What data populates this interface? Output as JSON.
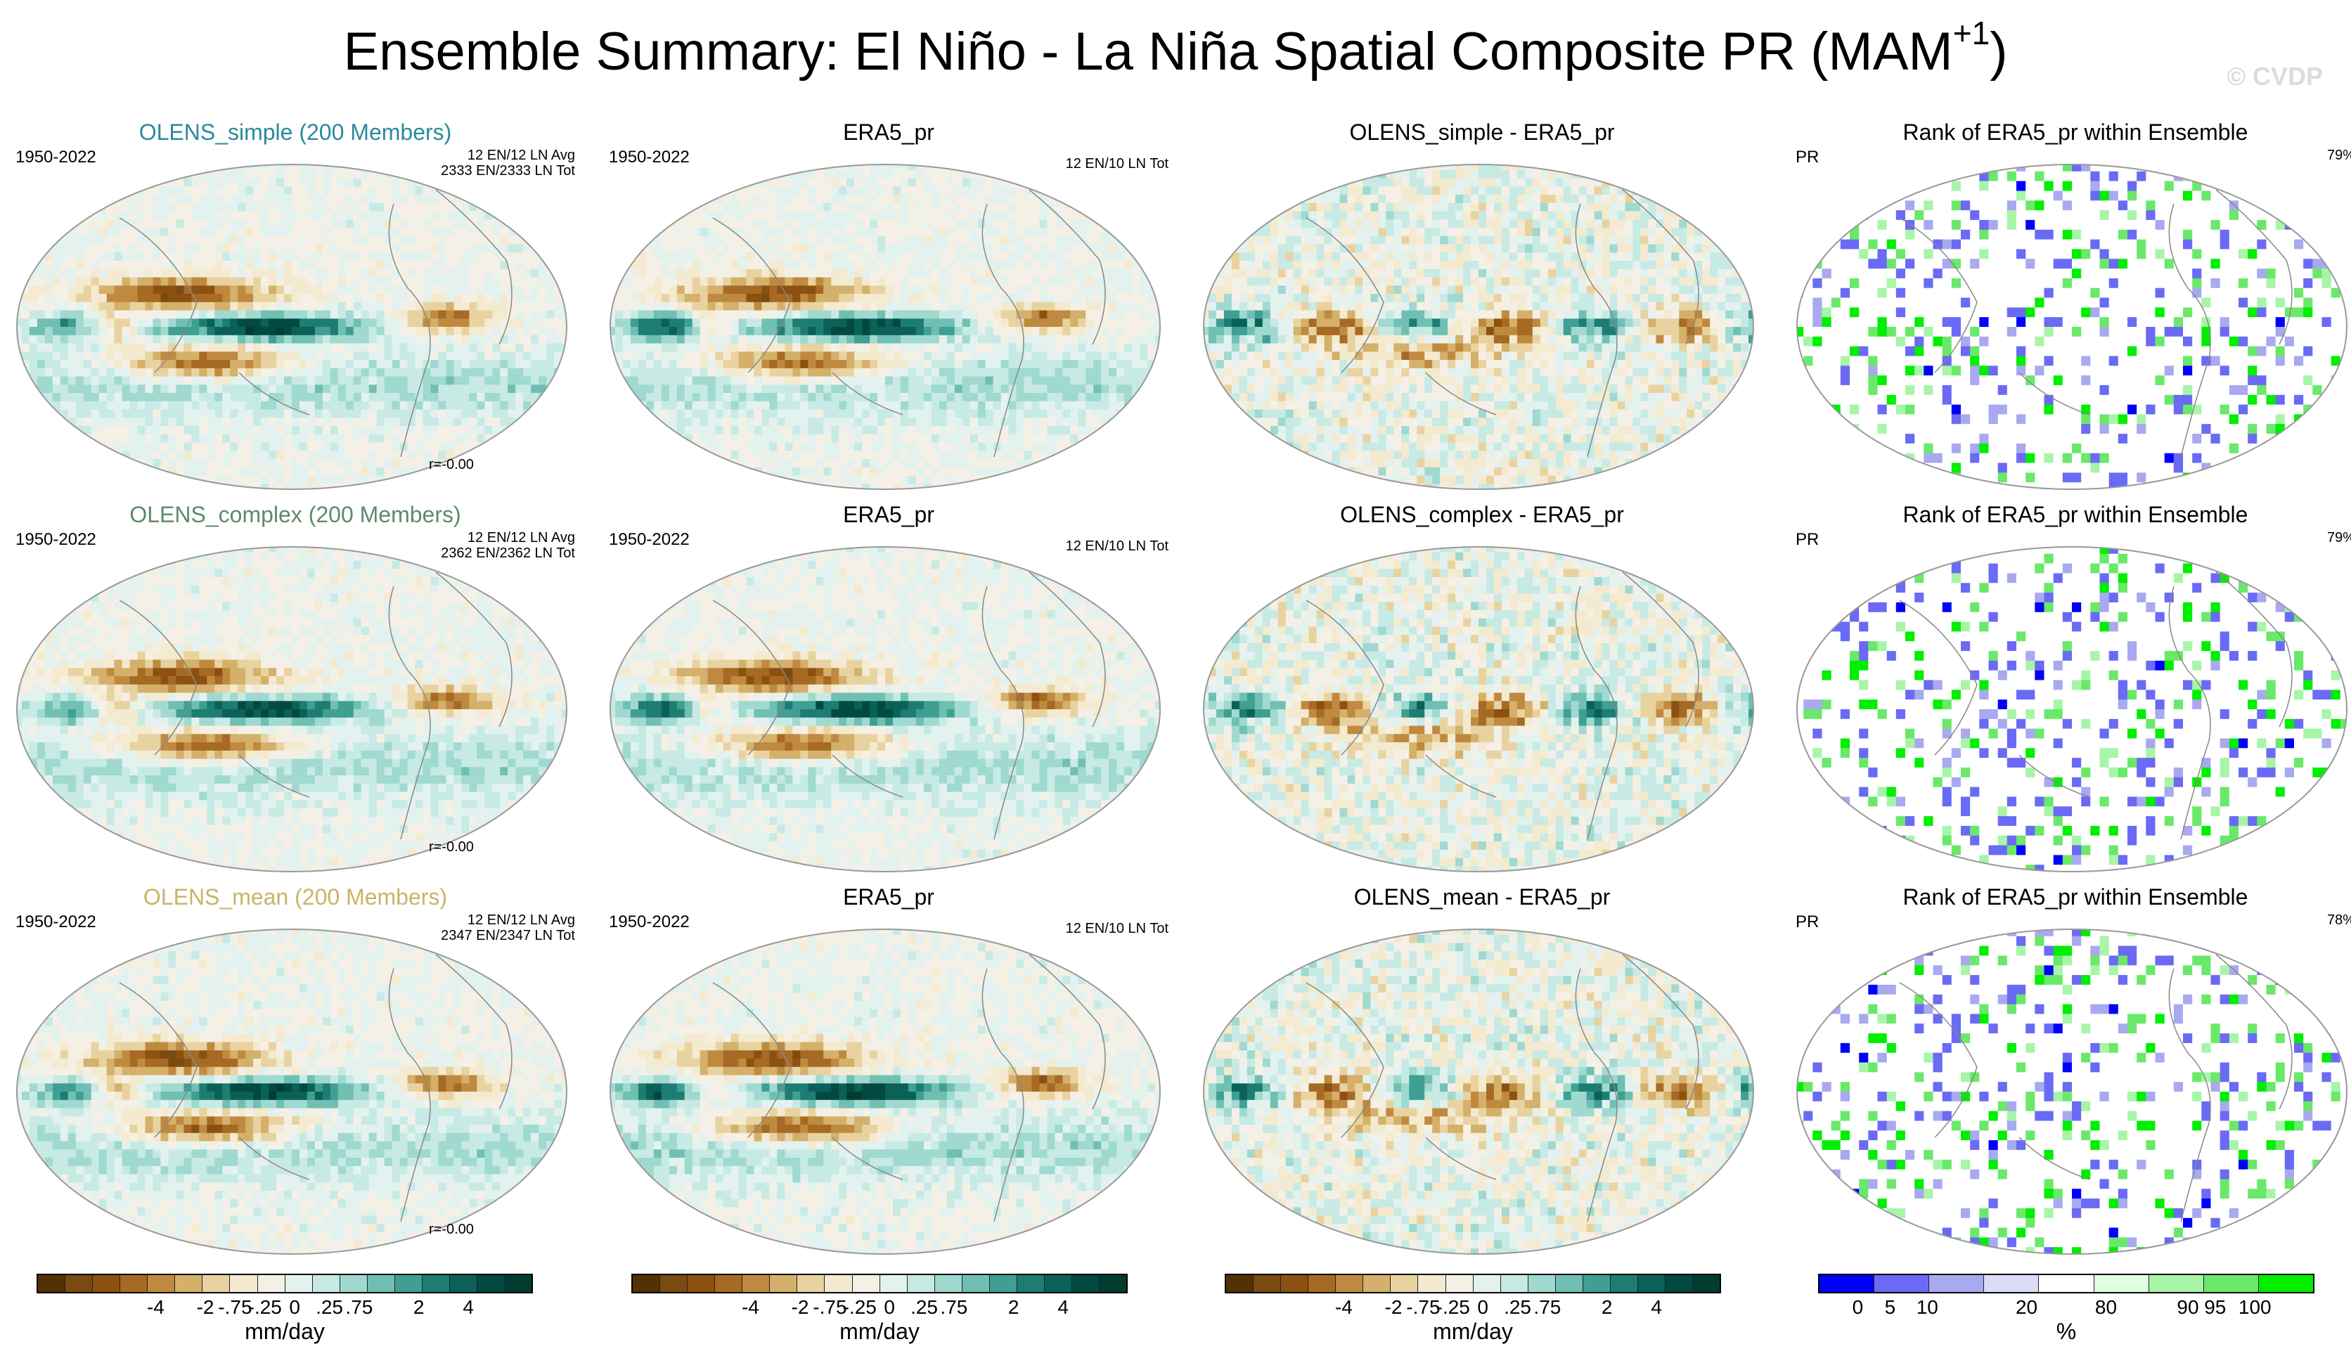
{
  "figure": {
    "title": "Ensemble Summary: El Niño - La Niña Spatial Composite PR (MAM",
    "title_sup": "+1",
    "title_end": ")",
    "watermark": "© CVDP"
  },
  "rows": [
    {
      "ens_title": "OLENS_simple (200 Members)",
      "ens_color": "#2a8a9c",
      "period": "1950-2022",
      "ens_info1": "12 EN/12 LN Avg",
      "ens_info2": "2333 EN/2333 LN Tot",
      "r_value": "r=-0.00",
      "obs_title": "ERA5_pr",
      "obs_period": "1950-2022",
      "obs_info": "12 EN/10 LN Tot",
      "diff_title": "OLENS_simple - ERA5_pr",
      "rank_title": "Rank of ERA5_pr within Ensemble",
      "rank_var": "PR",
      "rank_pct": "79%"
    },
    {
      "ens_title": "OLENS_complex (200 Members)",
      "ens_color": "#5e8a6a",
      "period": "1950-2022",
      "ens_info1": "12 EN/12 LN Avg",
      "ens_info2": "2362 EN/2362 LN Tot",
      "r_value": "r=-0.00",
      "obs_title": "ERA5_pr",
      "obs_period": "1950-2022",
      "obs_info": "12 EN/10 LN Tot",
      "diff_title": "OLENS_complex - ERA5_pr",
      "rank_title": "Rank of ERA5_pr within Ensemble",
      "rank_var": "PR",
      "rank_pct": "79%"
    },
    {
      "ens_title": "OLENS_mean (200 Members)",
      "ens_color": "#c9b467",
      "period": "1950-2022",
      "ens_info1": "12 EN/12 LN Avg",
      "ens_info2": "2347 EN/2347 LN Tot",
      "r_value": "r=-0.00",
      "obs_title": "ERA5_pr",
      "obs_period": "1950-2022",
      "obs_info": "12 EN/10 LN Tot",
      "diff_title": "OLENS_mean - ERA5_pr",
      "rank_title": "Rank of ERA5_pr within Ensemble",
      "rank_var": "PR",
      "rank_pct": "78%"
    }
  ],
  "chart_data": {
    "type": "heatmap",
    "projection": "Robinson-like global map, 3 rows x 4 columns of panels",
    "pr_colorbar": {
      "units": "mm/day",
      "tick_labels": [
        "-4",
        "-2",
        "-.75",
        "-.25",
        "0",
        ".25",
        ".75",
        "2",
        "4"
      ],
      "colors": [
        "#543005",
        "#7a4a10",
        "#8c5110",
        "#a66a24",
        "#bf8a3f",
        "#d4b06a",
        "#e8d3a0",
        "#f4ead0",
        "#f5f0e6",
        "#e3f2ef",
        "#c7eae4",
        "#9fd9cf",
        "#6fc0b2",
        "#3f9f93",
        "#1d7d72",
        "#0b6158",
        "#024a41",
        "#003c30"
      ]
    },
    "rank_colorbar": {
      "units": "%",
      "tick_labels": [
        "0",
        "5",
        "10",
        "20",
        "80",
        "90",
        "95",
        "100"
      ],
      "colors": [
        "#0000ff",
        "#6a6af5",
        "#a9a9f0",
        "#dcdcf6",
        "#ffffff",
        "#e0ffe0",
        "#a8f5a8",
        "#6ae86a",
        "#00ee00"
      ]
    },
    "panel_fields": [
      "ensemble composite",
      "observed composite",
      "ensemble minus observed",
      "rank of observed within ensemble"
    ],
    "summary": {
      "ensemble_composites": "Strong positive PR anomaly (teal, >4 mm/day) along the equatorial central-eastern Pacific; negative (brown) anomalies in a horseshoe over the western Pacific, Maritime Continent and northern South America/Atlantic.",
      "observed_composites": "Similar pattern with stronger western Pacific/Indian Ocean teal and broader brown off-equatorial bands.",
      "differences": "Mixed positive/negative residuals, strongest in the tropical Indo-Pacific.",
      "rank_maps": "Scattered blue (low rank) and green (high rank) patches; percentage of grid points within 10-90%: 79%, 79%, 78%."
    }
  }
}
